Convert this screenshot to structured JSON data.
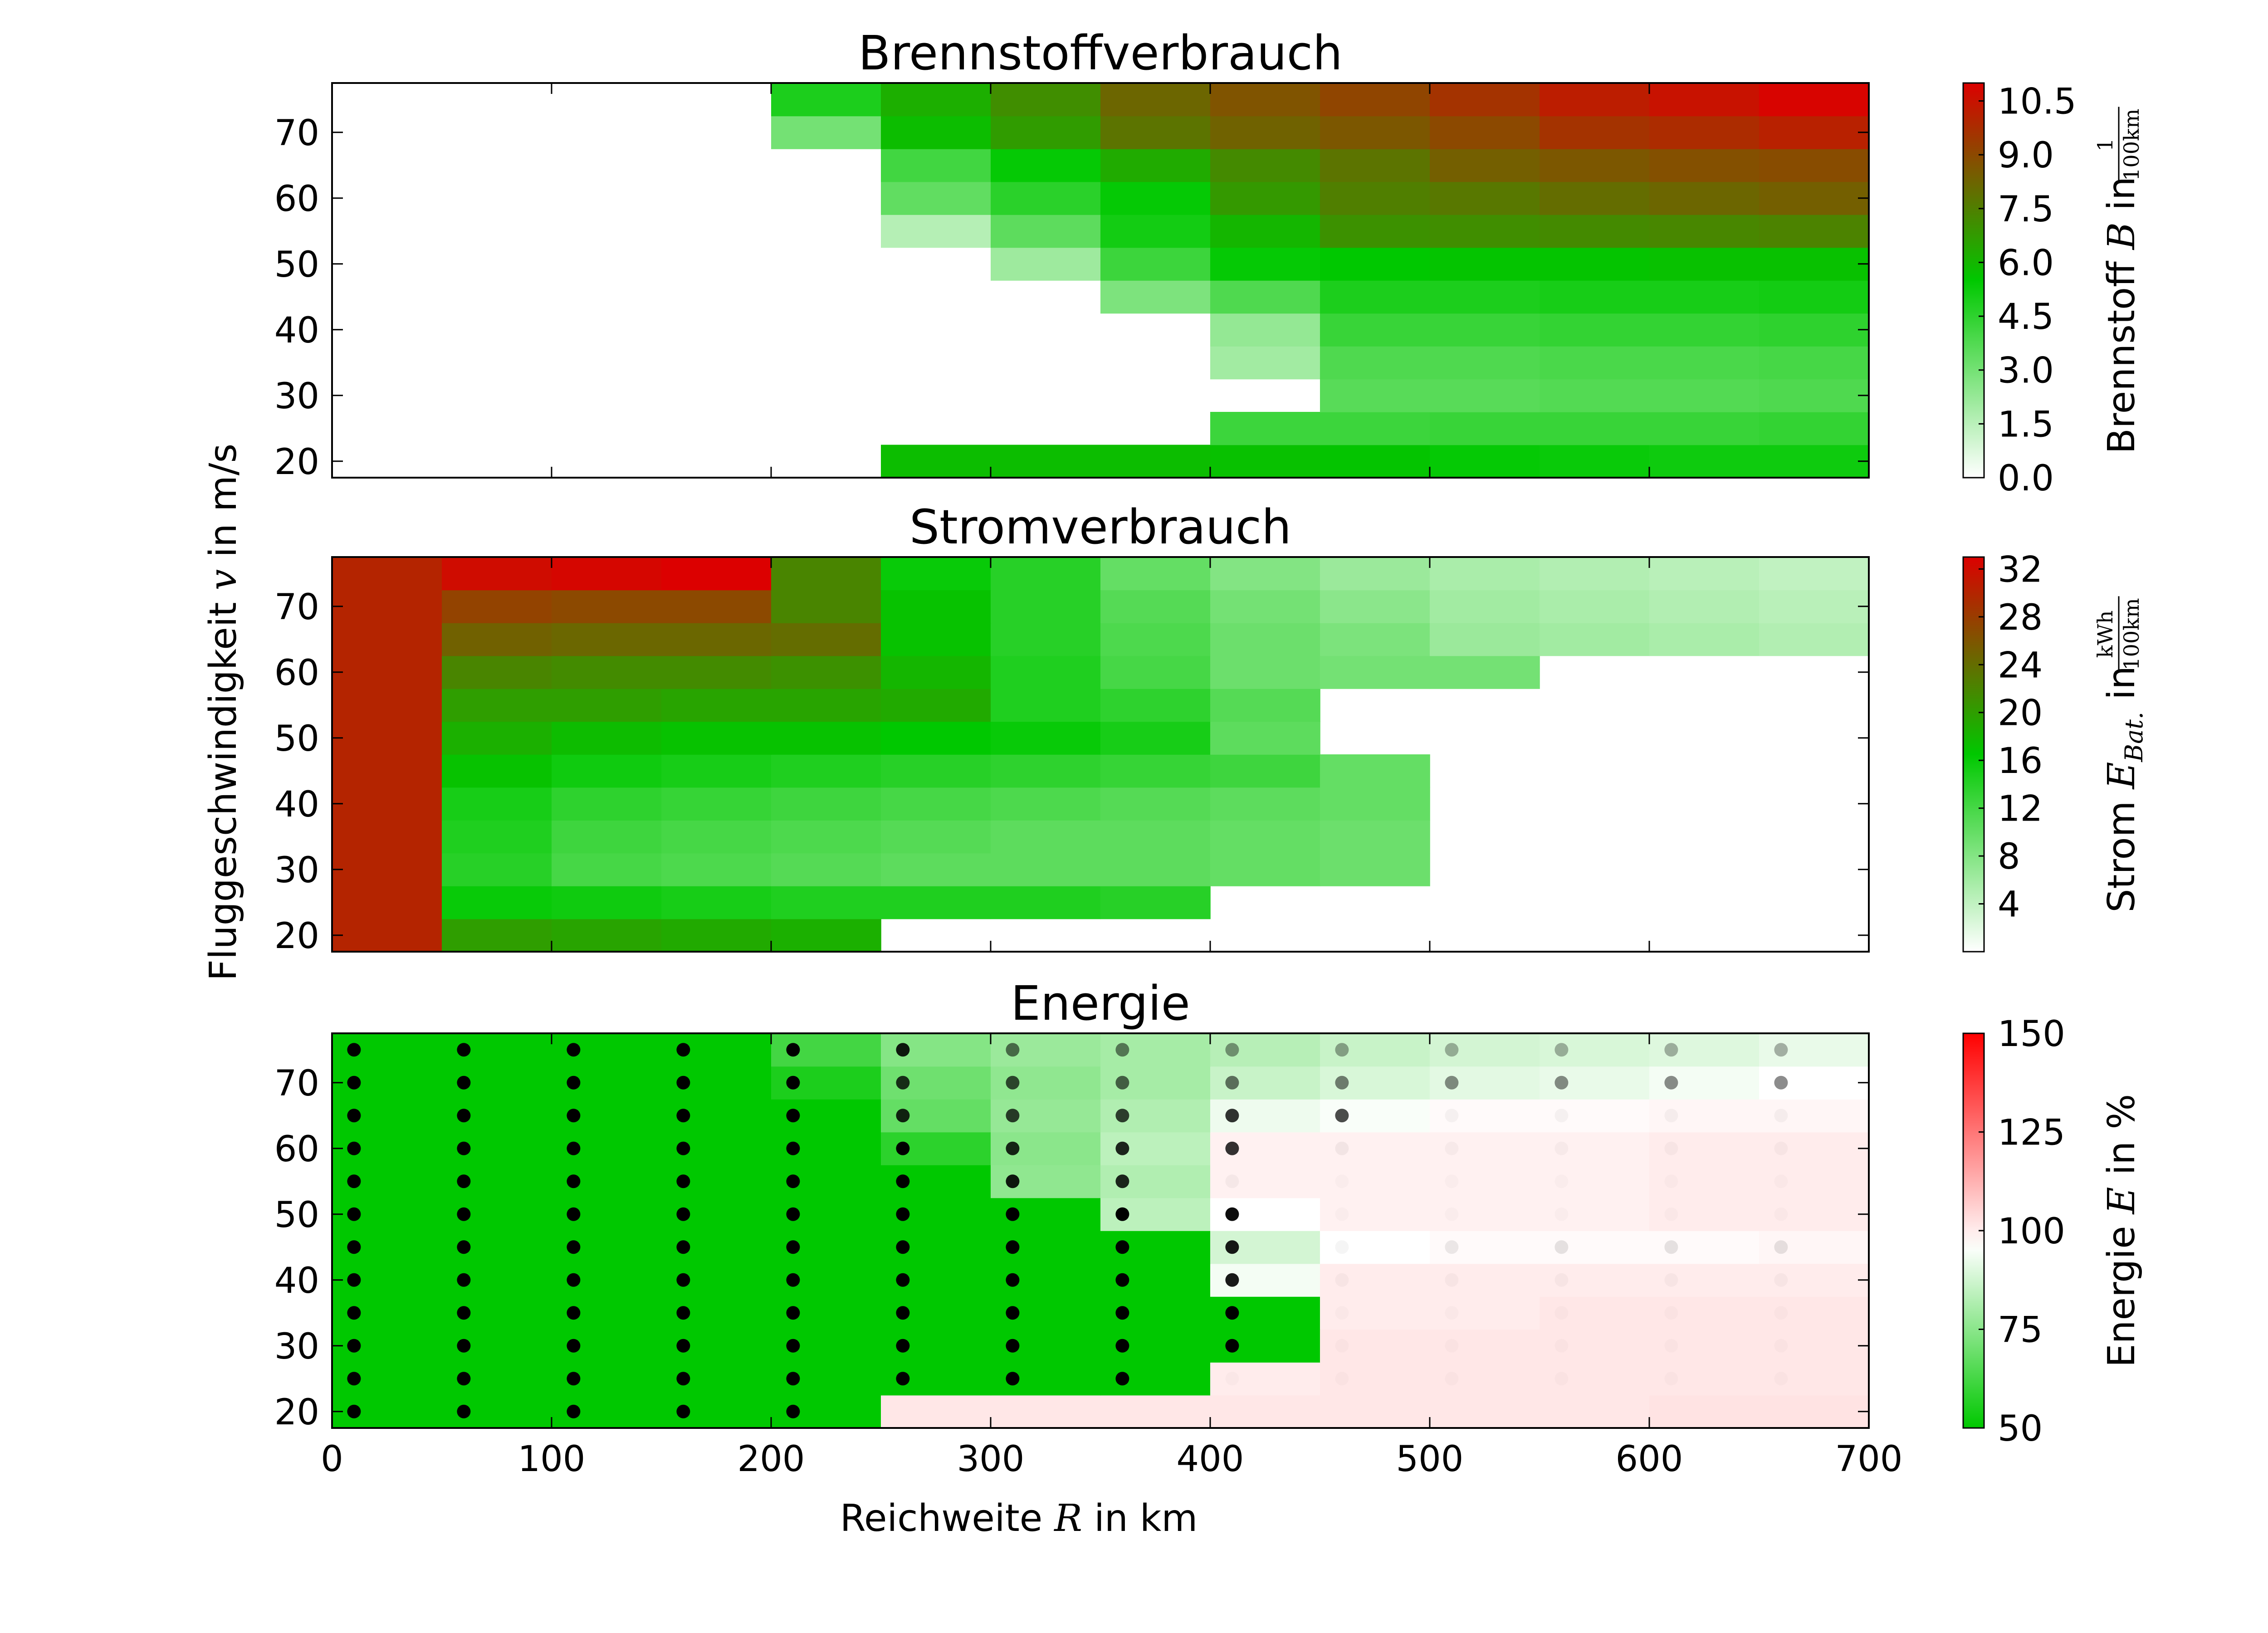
{
  "axes": {
    "xlabel": {
      "prefix": "Reichweite ",
      "symbol": "R",
      "suffix": " in km"
    },
    "ylabel": {
      "prefix": "Fluggeschwindigkeit ",
      "symbol": "v",
      "suffix": " in m/s"
    },
    "xlim": [
      0,
      700
    ],
    "ylim": [
      17.5,
      77.5
    ],
    "xticks": [
      0,
      100,
      200,
      300,
      400,
      500,
      600,
      700
    ],
    "yticks": [
      20,
      30,
      40,
      50,
      60,
      70
    ]
  },
  "grid": {
    "x_edges": [
      0,
      50,
      100,
      150,
      200,
      250,
      300,
      350,
      400,
      450,
      500,
      550,
      600,
      650,
      700
    ],
    "v_values": [
      20,
      25,
      30,
      35,
      40,
      45,
      50,
      55,
      60,
      65,
      70,
      75
    ]
  },
  "chart_data": [
    {
      "type": "heatmap",
      "title": "Brennstoffverbrauch",
      "colorbar": {
        "label": {
          "prefix": "Brennstoff ",
          "symbol": "B",
          "suffix": " in",
          "frac_num": "1",
          "frac_den": "100km"
        },
        "range": [
          0,
          11
        ],
        "ticks": [
          "0.0",
          "1.5",
          "3.0",
          "4.5",
          "6.0",
          "7.5",
          "9.0",
          "10.5"
        ],
        "colors": [
          "#ffffff",
          "#00c800",
          "#dc0000"
        ],
        "mid": 0.5
      },
      "values": [
        [
          null,
          null,
          null,
          null,
          null,
          5.8,
          5.8,
          5.8,
          5.7,
          5.6,
          5.4,
          5.3,
          5.2,
          5.2
        ],
        [
          null,
          null,
          null,
          null,
          null,
          null,
          null,
          null,
          4.2,
          4.2,
          4.3,
          4.3,
          4.3,
          4.4
        ],
        [
          null,
          null,
          null,
          null,
          null,
          null,
          null,
          null,
          null,
          3.6,
          3.6,
          3.7,
          3.7,
          3.8
        ],
        [
          null,
          null,
          null,
          null,
          null,
          null,
          null,
          null,
          2.0,
          3.8,
          3.8,
          3.9,
          3.9,
          4.0
        ],
        [
          null,
          null,
          null,
          null,
          null,
          null,
          null,
          null,
          2.3,
          4.3,
          4.3,
          4.4,
          4.4,
          4.5
        ],
        [
          null,
          null,
          null,
          null,
          null,
          null,
          null,
          2.8,
          3.8,
          4.9,
          4.9,
          5.0,
          5.0,
          5.1
        ],
        [
          null,
          null,
          null,
          null,
          null,
          null,
          2.1,
          4.2,
          5.4,
          5.5,
          5.6,
          5.6,
          5.7,
          5.7
        ],
        [
          null,
          null,
          null,
          null,
          null,
          1.6,
          3.5,
          5.1,
          6.0,
          7.0,
          7.1,
          7.2,
          7.3,
          7.4
        ],
        [
          null,
          null,
          null,
          null,
          null,
          3.4,
          4.6,
          5.4,
          6.8,
          7.5,
          7.7,
          8.0,
          8.2,
          8.4
        ],
        [
          null,
          null,
          null,
          null,
          null,
          4.1,
          5.4,
          6.3,
          7.2,
          7.8,
          8.4,
          8.6,
          8.8,
          8.9
        ],
        [
          null,
          null,
          null,
          null,
          3.0,
          5.8,
          6.7,
          7.8,
          8.3,
          8.6,
          9.0,
          9.6,
          9.8,
          10.1
        ],
        [
          null,
          null,
          null,
          null,
          4.9,
          6.2,
          7.1,
          8.2,
          8.7,
          9.1,
          9.6,
          10.2,
          10.5,
          10.9
        ]
      ]
    },
    {
      "type": "heatmap",
      "title": "Stromverbrauch",
      "colorbar": {
        "label": {
          "prefix": "Strom ",
          "symbol": "E",
          "sub": "Bat.",
          "suffix": " in",
          "frac_num": "kWh",
          "frac_den": "100km"
        },
        "range": [
          0,
          33
        ],
        "ticks": [
          "4",
          "8",
          "12",
          "16",
          "20",
          "24",
          "28",
          "32"
        ],
        "colors": [
          "#ffffff",
          "#00c800",
          "#dc0000"
        ],
        "mid": 0.5
      },
      "values": [
        [
          30,
          20,
          19.5,
          19,
          18.5,
          null,
          null,
          null,
          null,
          null,
          null,
          null,
          null,
          null
        ],
        [
          30,
          16,
          15.5,
          15,
          14.5,
          14.5,
          14.5,
          14,
          null,
          null,
          null,
          null,
          null,
          null
        ],
        [
          30,
          14,
          12,
          11.5,
          11,
          10.5,
          10.5,
          10.5,
          10,
          9.5,
          null,
          null,
          null,
          null
        ],
        [
          30,
          14.5,
          12.5,
          12,
          11.5,
          11,
          10.5,
          10.5,
          10,
          9.5,
          null,
          null,
          null,
          null
        ],
        [
          30,
          15,
          13.5,
          13,
          12.5,
          12,
          11.5,
          11,
          10.5,
          10,
          null,
          null,
          null,
          null
        ],
        [
          30,
          17,
          15.5,
          15,
          14.5,
          14,
          13.5,
          13,
          12.5,
          10,
          null,
          null,
          null,
          null
        ],
        [
          30,
          18.5,
          17.5,
          17,
          17,
          16.5,
          16,
          15,
          10.5,
          null,
          null,
          null,
          null,
          null
        ],
        [
          30,
          20,
          20,
          19.5,
          19.5,
          19,
          14.5,
          13.5,
          11,
          null,
          null,
          null,
          null,
          null
        ],
        [
          30,
          22,
          21.5,
          21.5,
          21,
          18,
          14.5,
          12,
          9.5,
          9,
          9,
          null,
          null,
          null
        ],
        [
          30,
          25,
          24.5,
          24.5,
          24,
          17,
          14,
          11.5,
          9.5,
          8.5,
          6.5,
          6,
          5.5,
          5
        ],
        [
          30,
          27.5,
          27,
          27,
          22,
          17,
          14,
          11,
          9,
          7.5,
          6,
          5.5,
          5,
          4.5
        ],
        [
          30,
          32,
          32.5,
          33,
          22,
          16,
          14,
          10,
          8,
          6.5,
          5.5,
          5,
          4.5,
          4
        ]
      ]
    },
    {
      "type": "heatmap",
      "title": "Energie",
      "colorbar": {
        "label": {
          "prefix": "Energie ",
          "symbol": "E",
          "suffix": " in %"
        },
        "range": [
          50,
          150
        ],
        "ticks": [
          "50",
          "75",
          "100",
          "125",
          "150"
        ],
        "colors": [
          "#00c800",
          "#ffffff",
          "#ff0000"
        ],
        "mid": 0.46
      },
      "values": [
        [
          50,
          50,
          50,
          50,
          50,
          101,
          101,
          101,
          101,
          101,
          101,
          101,
          102,
          102
        ],
        [
          50,
          50,
          50,
          50,
          50,
          50,
          50,
          50,
          100,
          101,
          101,
          101,
          101,
          101
        ],
        [
          50,
          50,
          50,
          50,
          50,
          50,
          50,
          50,
          50,
          101,
          101,
          101,
          101,
          101
        ],
        [
          50,
          50,
          50,
          50,
          50,
          50,
          50,
          50,
          50,
          100,
          100,
          101,
          101,
          101
        ],
        [
          50,
          50,
          50,
          50,
          50,
          50,
          50,
          50,
          94,
          100,
          100,
          100,
          100,
          100
        ],
        [
          50,
          50,
          50,
          50,
          50,
          50,
          50,
          50,
          88,
          96,
          97,
          97,
          97,
          98
        ],
        [
          50,
          50,
          50,
          50,
          50,
          50,
          50,
          84,
          96,
          99,
          99,
          99,
          100,
          100
        ],
        [
          50,
          50,
          50,
          50,
          50,
          50,
          76,
          82,
          99,
          99,
          99,
          99,
          100,
          100
        ],
        [
          50,
          50,
          50,
          50,
          50,
          58,
          75,
          84,
          99,
          99,
          99,
          99,
          100,
          100
        ],
        [
          50,
          50,
          50,
          50,
          50,
          68,
          77,
          82,
          93,
          95,
          97,
          97,
          98,
          98
        ],
        [
          50,
          50,
          50,
          50,
          55,
          70,
          76,
          80,
          86,
          89,
          91,
          92,
          94,
          96
        ],
        [
          50,
          50,
          50,
          50,
          62,
          74,
          78,
          80,
          83,
          86,
          88,
          89,
          90,
          92
        ]
      ],
      "points": {
        "x": [
          10,
          60,
          110,
          160,
          210,
          260,
          310,
          360,
          410,
          460,
          510,
          560,
          610,
          660
        ],
        "opacity": [
          [
            1,
            1,
            1,
            1,
            1,
            0,
            0,
            0,
            0,
            0,
            0,
            0,
            0,
            0
          ],
          [
            1,
            1,
            1,
            1,
            1,
            1,
            1,
            1,
            0.02,
            0.02,
            0.02,
            0.02,
            0.02,
            0.02
          ],
          [
            1,
            1,
            1,
            1,
            1,
            1,
            1,
            1,
            1,
            0.02,
            0.02,
            0.02,
            0.02,
            0.02
          ],
          [
            1,
            1,
            1,
            1,
            1,
            1,
            1,
            1,
            1,
            0.02,
            0.02,
            0.02,
            0.02,
            0.02
          ],
          [
            1,
            1,
            1,
            1,
            1,
            1,
            1,
            1,
            0.9,
            0.03,
            0.03,
            0.03,
            0.03,
            0.03
          ],
          [
            1,
            1,
            1,
            1,
            1,
            1,
            1,
            1,
            0.9,
            0.04,
            0.08,
            0.1,
            0.1,
            0.1
          ],
          [
            1,
            1,
            1,
            1,
            1,
            1,
            1,
            1,
            0.95,
            0.02,
            0.02,
            0.02,
            0.02,
            0.02
          ],
          [
            1,
            1,
            1,
            1,
            1,
            1,
            0.9,
            0.85,
            0.04,
            0.02,
            0.02,
            0.02,
            0.02,
            0.02
          ],
          [
            1,
            1,
            1,
            1,
            1,
            1,
            0.85,
            0.85,
            0.8,
            0.05,
            0.03,
            0.03,
            0.03,
            0.03
          ],
          [
            1,
            1,
            1,
            1,
            1,
            0.85,
            0.75,
            0.75,
            0.8,
            0.7,
            0.04,
            0.04,
            0.04,
            0.04
          ],
          [
            1,
            1,
            1,
            1,
            1,
            0.8,
            0.7,
            0.6,
            0.55,
            0.5,
            0.45,
            0.45,
            0.45,
            0.45
          ],
          [
            1,
            1,
            1,
            1,
            1,
            0.9,
            0.55,
            0.5,
            0.4,
            0.35,
            0.3,
            0.3,
            0.3,
            0.3
          ]
        ]
      }
    }
  ]
}
